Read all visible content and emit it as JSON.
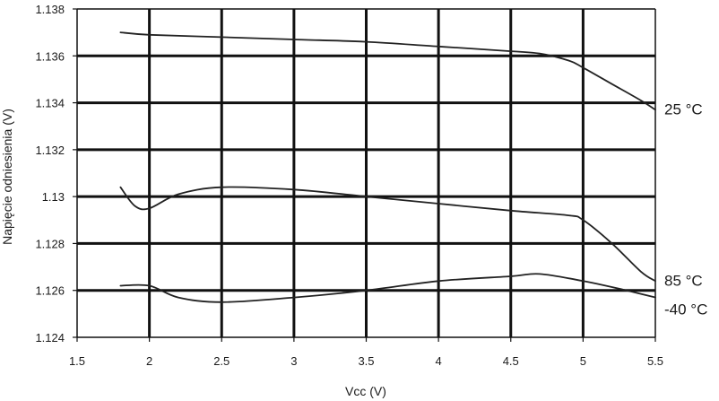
{
  "chart_data": {
    "type": "line",
    "title": "",
    "xlabel": "Vcc (V)",
    "ylabel": "Napięcie odniesienia (V)",
    "xlim": [
      1.5,
      5.5
    ],
    "ylim": [
      1.124,
      1.138
    ],
    "x_ticks": [
      1.5,
      2,
      2.5,
      3,
      3.5,
      4,
      4.5,
      5,
      5.5
    ],
    "x_tick_labels": [
      "1.5",
      "2",
      "2.5",
      "3",
      "3.5",
      "4",
      "4.5",
      "5",
      "5.5"
    ],
    "y_ticks": [
      1.124,
      1.126,
      1.128,
      1.13,
      1.132,
      1.134,
      1.136,
      1.138
    ],
    "y_tick_labels": [
      "1.124",
      "1.126",
      "1.128",
      "1.13",
      "1.132",
      "1.134",
      "1.136",
      "1.138"
    ],
    "grid": true,
    "line_color": "#222222",
    "grid_color": "#111111",
    "series": [
      {
        "name": "25 °C",
        "x": [
          1.8,
          2.0,
          2.5,
          3.0,
          3.5,
          4.0,
          4.5,
          4.7,
          4.9,
          5.0,
          5.2,
          5.4,
          5.5
        ],
        "y": [
          1.137,
          1.1369,
          1.1368,
          1.1367,
          1.1366,
          1.1364,
          1.1362,
          1.1361,
          1.1358,
          1.1355,
          1.1348,
          1.1341,
          1.1337
        ]
      },
      {
        "name": "85 °C",
        "x": [
          1.8,
          1.9,
          2.0,
          2.2,
          2.5,
          3.0,
          3.5,
          4.0,
          4.5,
          4.9,
          5.0,
          5.2,
          5.4,
          5.5
        ],
        "y": [
          1.1304,
          1.1296,
          1.1295,
          1.1301,
          1.1304,
          1.1303,
          1.13,
          1.1297,
          1.1294,
          1.1292,
          1.129,
          1.128,
          1.1268,
          1.1264
        ]
      },
      {
        "name": "-40 °C",
        "x": [
          1.8,
          2.0,
          2.2,
          2.5,
          3.0,
          3.5,
          4.0,
          4.5,
          4.7,
          5.0,
          5.3,
          5.5
        ],
        "y": [
          1.1262,
          1.1262,
          1.1257,
          1.1255,
          1.1257,
          1.126,
          1.1264,
          1.1266,
          1.1267,
          1.1264,
          1.126,
          1.1257
        ]
      }
    ]
  }
}
